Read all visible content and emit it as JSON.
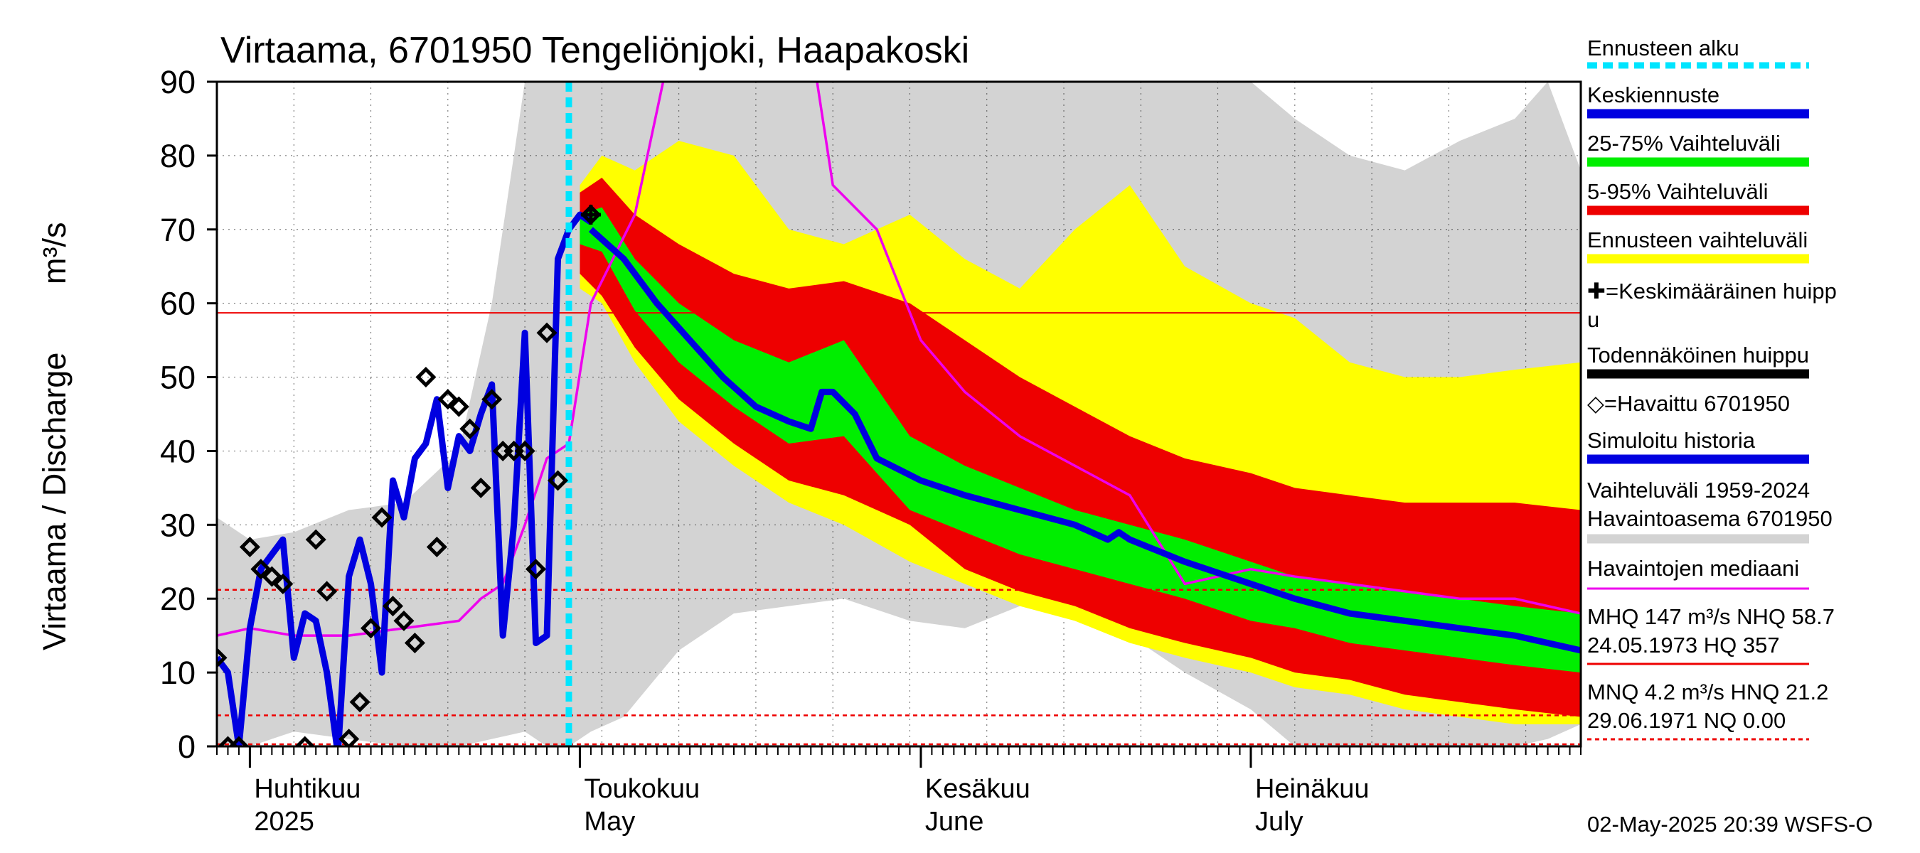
{
  "chart_data": {
    "type": "area",
    "title": "Virtaama, 6701950 Tengeliönjoki, Haapakoski",
    "ylabel": "Virtaama / Discharge",
    "yunit": "m³/s",
    "ylim": [
      0,
      90
    ],
    "yticks": [
      "0",
      "10",
      "20",
      "30",
      "40",
      "50",
      "60",
      "70",
      "80",
      "90"
    ],
    "xlim": [
      "2025-03-29",
      "2025-07-31"
    ],
    "months": [
      {
        "date": "2025-04-01",
        "fi": "Huhtikuu",
        "en": "2025"
      },
      {
        "date": "2025-05-01",
        "fi": "Toukokuu",
        "en": "May"
      },
      {
        "date": "2025-06-01",
        "fi": "Kesäkuu",
        "en": "June"
      },
      {
        "date": "2025-07-01",
        "fi": "Heinäkuu",
        "en": "July"
      }
    ],
    "forecast_start": "2025-04-30",
    "reference_lines": {
      "MHQ": 147,
      "NHQ": 58.7,
      "HNQ": 21.2,
      "MNQ": 4.2,
      "NQ": 0.0
    },
    "colors": {
      "forecast_start": "#00e5ff",
      "mean_forecast": "#0000e0",
      "range_25_75": "#00ee00",
      "range_5_95": "#ee0000",
      "forecast_range": "#ffff00",
      "mean_peak": "#000000",
      "probable_peak": "#000000",
      "observed": "#000000",
      "simulated": "#0000e0",
      "history_range": "#d3d3d3",
      "median": "#ee00ee",
      "hq_lines": "#ee0000",
      "history_min": "#e6e6e6"
    },
    "series": {
      "history_range": {
        "x": [
          "2025-03-29",
          "2025-04-01",
          "2025-04-05",
          "2025-04-10",
          "2025-04-15",
          "2025-04-20",
          "2025-04-23",
          "2025-04-26",
          "2025-04-28",
          "2025-04-30",
          "2025-05-02",
          "2025-05-05",
          "2025-05-10",
          "2025-05-15",
          "2025-05-20",
          "2025-05-25",
          "2025-05-31",
          "2025-06-05",
          "2025-06-10",
          "2025-06-15",
          "2025-06-20",
          "2025-06-25",
          "2025-07-01",
          "2025-07-05",
          "2025-07-10",
          "2025-07-15",
          "2025-07-20",
          "2025-07-25",
          "2025-07-28",
          "2025-07-31"
        ],
        "upper": [
          31,
          28,
          29,
          32,
          33,
          40,
          60,
          90,
          90,
          90,
          90,
          90,
          90,
          90,
          90,
          90,
          90,
          90,
          90,
          90,
          90,
          90,
          90,
          85,
          80,
          78,
          82,
          85,
          90,
          78
        ],
        "lower": [
          0,
          0,
          2,
          1,
          0,
          0,
          1,
          2,
          0,
          0,
          2,
          4,
          13,
          18,
          19,
          20,
          17,
          16,
          19,
          19,
          15,
          10,
          5,
          0,
          0,
          0,
          0,
          0,
          1,
          3
        ]
      },
      "forecast_range": {
        "x": [
          "2025-05-01",
          "2025-05-03",
          "2025-05-06",
          "2025-05-10",
          "2025-05-15",
          "2025-05-20",
          "2025-05-25",
          "2025-05-31",
          "2025-06-05",
          "2025-06-10",
          "2025-06-15",
          "2025-06-20",
          "2025-06-25",
          "2025-07-01",
          "2025-07-05",
          "2025-07-10",
          "2025-07-15",
          "2025-07-20",
          "2025-07-25",
          "2025-07-31"
        ],
        "upper": [
          76,
          80,
          78,
          82,
          80,
          70,
          68,
          72,
          66,
          62,
          70,
          76,
          65,
          60,
          58,
          52,
          50,
          50,
          51,
          52
        ],
        "lower": [
          62,
          60,
          52,
          44,
          38,
          33,
          30,
          25,
          22,
          19,
          17,
          14,
          12,
          10,
          8,
          7,
          5,
          4,
          3,
          3
        ]
      },
      "range_5_95": {
        "x": [
          "2025-05-01",
          "2025-05-03",
          "2025-05-06",
          "2025-05-10",
          "2025-05-15",
          "2025-05-20",
          "2025-05-25",
          "2025-05-31",
          "2025-06-05",
          "2025-06-10",
          "2025-06-15",
          "2025-06-20",
          "2025-06-25",
          "2025-07-01",
          "2025-07-05",
          "2025-07-10",
          "2025-07-15",
          "2025-07-20",
          "2025-07-25",
          "2025-07-31"
        ],
        "upper": [
          75,
          77,
          72,
          68,
          64,
          62,
          63,
          60,
          55,
          50,
          46,
          42,
          39,
          37,
          35,
          34,
          33,
          33,
          33,
          32
        ],
        "lower": [
          64,
          61,
          54,
          47,
          41,
          36,
          34,
          30,
          24,
          21,
          19,
          16,
          14,
          12,
          10,
          9,
          7,
          6,
          5,
          4
        ]
      },
      "range_25_75": {
        "x": [
          "2025-05-01",
          "2025-05-03",
          "2025-05-06",
          "2025-05-10",
          "2025-05-15",
          "2025-05-20",
          "2025-05-25",
          "2025-05-31",
          "2025-06-05",
          "2025-06-10",
          "2025-06-15",
          "2025-06-20",
          "2025-06-25",
          "2025-07-01",
          "2025-07-05",
          "2025-07-10",
          "2025-07-15",
          "2025-07-20",
          "2025-07-25",
          "2025-07-31"
        ],
        "upper": [
          72,
          73,
          66,
          60,
          55,
          52,
          55,
          42,
          38,
          35,
          32,
          30,
          28,
          25,
          23,
          22,
          21,
          20,
          19,
          18
        ],
        "lower": [
          68,
          67,
          59,
          52,
          46,
          41,
          42,
          32,
          29,
          26,
          24,
          22,
          20,
          17,
          16,
          14,
          13,
          12,
          11,
          10
        ]
      },
      "simulated": {
        "x": [
          "2025-03-29",
          "2025-03-30",
          "2025-03-31",
          "2025-04-01",
          "2025-04-02",
          "2025-04-04",
          "2025-04-05",
          "2025-04-06",
          "2025-04-07",
          "2025-04-08",
          "2025-04-09",
          "2025-04-10",
          "2025-04-11",
          "2025-04-12",
          "2025-04-13",
          "2025-04-14",
          "2025-04-15",
          "2025-04-16",
          "2025-04-17",
          "2025-04-18",
          "2025-04-19",
          "2025-04-20",
          "2025-04-21",
          "2025-04-22",
          "2025-04-23",
          "2025-04-24",
          "2025-04-25",
          "2025-04-26",
          "2025-04-27",
          "2025-04-28",
          "2025-04-29",
          "2025-04-30",
          "2025-05-01",
          "2025-05-02"
        ],
        "y": [
          12,
          10,
          0,
          16,
          24,
          28,
          12,
          18,
          17,
          10,
          -1,
          23,
          28,
          22,
          10,
          36,
          31,
          39,
          41,
          47,
          35,
          42,
          40,
          45,
          49,
          15,
          30,
          56,
          14,
          15,
          66,
          70,
          72,
          71
        ]
      },
      "mean_forecast": {
        "x": [
          "2025-05-02",
          "2025-05-05",
          "2025-05-08",
          "2025-05-11",
          "2025-05-14",
          "2025-05-17",
          "2025-05-20",
          "2025-05-22",
          "2025-05-23",
          "2025-05-24",
          "2025-05-26",
          "2025-05-28",
          "2025-06-01",
          "2025-06-05",
          "2025-06-10",
          "2025-06-15",
          "2025-06-18",
          "2025-06-19",
          "2025-06-20",
          "2025-06-25",
          "2025-07-01",
          "2025-07-05",
          "2025-07-10",
          "2025-07-15",
          "2025-07-20",
          "2025-07-25",
          "2025-07-31"
        ],
        "y": [
          70,
          66,
          60,
          55,
          50,
          46,
          44,
          43,
          48,
          48,
          45,
          39,
          36,
          34,
          32,
          30,
          28,
          29,
          28,
          25,
          22,
          20,
          18,
          17,
          16,
          15,
          13
        ]
      },
      "median": {
        "x": [
          "2025-03-29",
          "2025-04-01",
          "2025-04-05",
          "2025-04-10",
          "2025-04-15",
          "2025-04-20",
          "2025-04-22",
          "2025-04-24",
          "2025-04-26",
          "2025-04-28",
          "2025-04-30",
          "2025-05-02",
          "2025-05-04",
          "2025-05-06",
          "2025-05-08",
          "2025-05-10",
          "2025-05-15",
          "2025-05-20",
          "2025-05-24",
          "2025-05-28",
          "2025-06-01",
          "2025-06-05",
          "2025-06-10",
          "2025-06-15",
          "2025-06-20",
          "2025-06-25",
          "2025-07-01",
          "2025-07-05",
          "2025-07-10",
          "2025-07-15",
          "2025-07-20",
          "2025-07-25",
          "2025-07-31"
        ],
        "y": [
          15,
          16,
          15,
          15,
          16,
          17,
          20,
          22,
          30,
          39,
          41,
          60,
          66,
          72,
          86,
          100,
          130,
          115,
          76,
          70,
          55,
          48,
          42,
          38,
          34,
          22,
          24,
          23,
          22,
          21,
          20,
          20,
          18
        ]
      },
      "observed": {
        "x": [
          "2025-03-29",
          "2025-03-30",
          "2025-03-31",
          "2025-04-01",
          "2025-04-02",
          "2025-04-03",
          "2025-04-04",
          "2025-04-06",
          "2025-04-07",
          "2025-04-08",
          "2025-04-10",
          "2025-04-11",
          "2025-04-12",
          "2025-04-13",
          "2025-04-14",
          "2025-04-15",
          "2025-04-16",
          "2025-04-17",
          "2025-04-18",
          "2025-04-19",
          "2025-04-20",
          "2025-04-21",
          "2025-04-22",
          "2025-04-23",
          "2025-04-24",
          "2025-04-25",
          "2025-04-26",
          "2025-04-27",
          "2025-04-28",
          "2025-04-29",
          "2025-05-02"
        ],
        "y": [
          12,
          0,
          0,
          27,
          24,
          23,
          22,
          0,
          28,
          21,
          1,
          6,
          16,
          31,
          19,
          17,
          14,
          50,
          27,
          47,
          46,
          43,
          35,
          47,
          40,
          40,
          40,
          24,
          56,
          36,
          72
        ]
      },
      "mean_peak": {
        "x": "2025-05-02",
        "y": 72
      }
    },
    "legend": [
      {
        "label": "Ennusteen alku",
        "style": "dash",
        "color": "#00e5ff"
      },
      {
        "label": "Keskiennuste",
        "style": "line",
        "color": "#0000e0"
      },
      {
        "label": "25-75% Vaihteluväli",
        "style": "line",
        "color": "#00ee00"
      },
      {
        "label": "5-95% Vaihteluväli",
        "style": "line",
        "color": "#ee0000"
      },
      {
        "label": "Ennusteen vaihteluväli",
        "style": "line",
        "color": "#ffff00"
      },
      {
        "label": "✚=Keskimääräinen huipp",
        "label2": "u",
        "style": "none"
      },
      {
        "label": "Todennäköinen huippu",
        "style": "line",
        "color": "#000000"
      },
      {
        "label": "◇=Havaittu 6701950",
        "style": "none"
      },
      {
        "label": "Simuloitu historia",
        "style": "line",
        "color": "#0000e0"
      },
      {
        "label": "Vaihteluväli 1959-2024",
        "label2": " Havaintoasema 6701950",
        "style": "line",
        "color": "#d3d3d3"
      },
      {
        "label": "Havaintojen mediaani",
        "style": "thin",
        "color": "#ee00ee"
      },
      {
        "label": "MHQ  147 m³/s NHQ 58.7",
        "label2": "24.05.1973 HQ  357",
        "style": "thin",
        "color": "#ee0000"
      },
      {
        "label": "MNQ  4.2 m³/s HNQ 21.2",
        "label2": "29.06.1971 NQ 0.00",
        "style": "dotted",
        "color": "#ee0000"
      }
    ],
    "footer": "02-May-2025 20:39 WSFS-O"
  }
}
